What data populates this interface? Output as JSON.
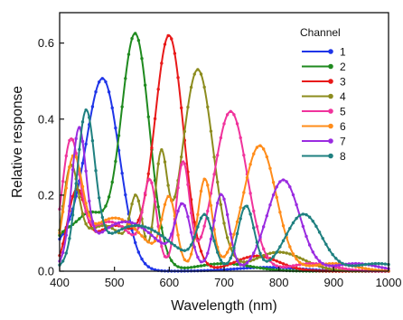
{
  "chart_data": {
    "type": "line",
    "xlabel": "Wavelength (nm)",
    "ylabel": "Relative response",
    "xlim": [
      400,
      1000
    ],
    "ylim": [
      0.0,
      0.68
    ],
    "xticks": [
      400,
      500,
      600,
      700,
      800,
      900,
      1000
    ],
    "xtick_labels": [
      "400",
      "500",
      "600",
      "700",
      "800",
      "900",
      "1000"
    ],
    "yticks": [
      0.0,
      0.2,
      0.4,
      0.6
    ],
    "ytick_labels": [
      "0.0",
      "0.2",
      "0.4",
      "0.6"
    ],
    "grid": false,
    "markers": true,
    "legend": {
      "title": "Channel",
      "placement": "top-right"
    },
    "series": [
      {
        "name": "1",
        "color": "#1f35e8",
        "peaks": [
          [
            480,
            0.48,
            30,
            0
          ],
          [
            420,
            0.08,
            40,
            0
          ],
          [
            780,
            0.01,
            60,
            0
          ]
        ]
      },
      {
        "name": "2",
        "color": "#1f8a1f",
        "peaks": [
          [
            538,
            0.62,
            26,
            0
          ],
          [
            455,
            0.15,
            32,
            0
          ],
          [
            400,
            0.06,
            20,
            0
          ],
          [
            700,
            0.02,
            50,
            0
          ]
        ]
      },
      {
        "name": "3",
        "color": "#e81919",
        "peaks": [
          [
            600,
            0.61,
            26,
            0
          ],
          [
            500,
            0.12,
            45,
            0
          ],
          [
            430,
            0.18,
            16,
            0
          ],
          [
            760,
            0.04,
            40,
            0
          ]
        ]
      },
      {
        "name": "4",
        "color": "#8c8c1e",
        "peaks": [
          [
            652,
            0.53,
            28,
            0
          ],
          [
            585,
            0.28,
            11,
            0
          ],
          [
            540,
            0.15,
            11,
            0
          ],
          [
            480,
            0.12,
            45,
            0
          ],
          [
            420,
            0.23,
            14,
            0
          ],
          [
            800,
            0.05,
            45,
            0
          ]
        ]
      },
      {
        "name": "5",
        "color": "#f0339c",
        "peaks": [
          [
            712,
            0.42,
            30,
            0
          ],
          [
            625,
            0.28,
            12,
            0
          ],
          [
            565,
            0.2,
            12,
            0
          ],
          [
            490,
            0.13,
            50,
            0
          ],
          [
            420,
            0.3,
            16,
            0
          ],
          [
            860,
            0.02,
            40,
            0
          ]
        ]
      },
      {
        "name": "6",
        "color": "#ff8c1a",
        "peaks": [
          [
            765,
            0.33,
            30,
            0
          ],
          [
            665,
            0.24,
            13,
            0
          ],
          [
            600,
            0.17,
            13,
            0
          ],
          [
            500,
            0.14,
            55,
            0
          ],
          [
            425,
            0.25,
            16,
            0
          ],
          [
            900,
            0.02,
            40,
            0
          ]
        ]
      },
      {
        "name": "7",
        "color": "#9a2be0",
        "peaks": [
          [
            808,
            0.24,
            30,
            0
          ],
          [
            695,
            0.2,
            14,
            0
          ],
          [
            625,
            0.15,
            14,
            0
          ],
          [
            520,
            0.13,
            60,
            0
          ],
          [
            435,
            0.33,
            13,
            0
          ],
          [
            940,
            0.02,
            40,
            0
          ]
        ]
      },
      {
        "name": "8",
        "color": "#1f8080",
        "peaks": [
          [
            845,
            0.15,
            33,
            0
          ],
          [
            740,
            0.17,
            15,
            0
          ],
          [
            665,
            0.13,
            15,
            0
          ],
          [
            540,
            0.12,
            65,
            0
          ],
          [
            448,
            0.38,
            16,
            0
          ],
          [
            980,
            0.02,
            40,
            0
          ]
        ]
      }
    ]
  }
}
